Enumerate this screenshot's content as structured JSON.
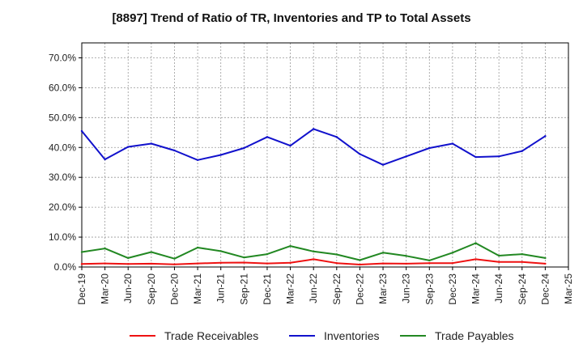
{
  "chart_data": {
    "type": "line",
    "title": "[8897]  Trend of Ratio of TR, Inventories and TP to Total Assets",
    "xlabel": "",
    "ylabel": "",
    "ylim": [
      0,
      75
    ],
    "yticks": [
      "0.0%",
      "10.0%",
      "20.0%",
      "30.0%",
      "40.0%",
      "50.0%",
      "60.0%",
      "70.0%"
    ],
    "ytick_values": [
      0,
      10,
      20,
      30,
      40,
      50,
      60,
      70
    ],
    "x": [
      "Dec-19",
      "Mar-20",
      "Jun-20",
      "Sep-20",
      "Dec-20",
      "Mar-21",
      "Jun-21",
      "Sep-21",
      "Dec-21",
      "Mar-22",
      "Jun-22",
      "Sep-22",
      "Dec-22",
      "Mar-23",
      "Jun-23",
      "Sep-23",
      "Dec-23",
      "Mar-24",
      "Jun-24",
      "Sep-24",
      "Dec-24",
      "Mar-25"
    ],
    "grid": true,
    "legend_position": "bottom",
    "series": [
      {
        "name": "Trade Receivables",
        "color": "#ee1111",
        "values": [
          1.0,
          1.2,
          1.0,
          1.1,
          0.9,
          1.2,
          1.4,
          1.5,
          1.2,
          1.4,
          2.6,
          1.3,
          0.8,
          1.2,
          1.1,
          1.3,
          1.3,
          2.6,
          1.7,
          1.7,
          1.1,
          null
        ]
      },
      {
        "name": "Inventories",
        "color": "#1111cc",
        "values": [
          45.5,
          36.0,
          40.2,
          41.3,
          39.0,
          35.8,
          37.5,
          39.8,
          43.5,
          40.6,
          46.2,
          43.5,
          37.8,
          34.2,
          37.0,
          39.8,
          41.3,
          36.8,
          37.0,
          38.8,
          43.8,
          null
        ]
      },
      {
        "name": "Trade Payables",
        "color": "#228822",
        "values": [
          5.0,
          6.2,
          3.0,
          5.0,
          2.8,
          6.5,
          5.3,
          3.2,
          4.3,
          7.0,
          5.2,
          4.2,
          2.3,
          4.8,
          3.7,
          2.2,
          4.8,
          8.0,
          3.8,
          4.3,
          3.0,
          null
        ]
      }
    ]
  }
}
